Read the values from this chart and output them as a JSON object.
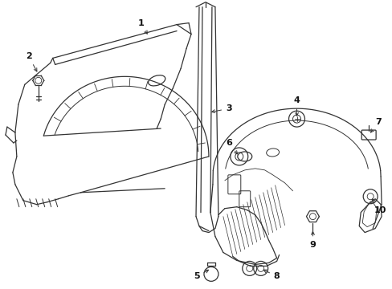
{
  "bg_color": "#ffffff",
  "lc": "#333333",
  "lw": 0.9,
  "figsize": [
    4.89,
    3.6
  ],
  "dpi": 100
}
